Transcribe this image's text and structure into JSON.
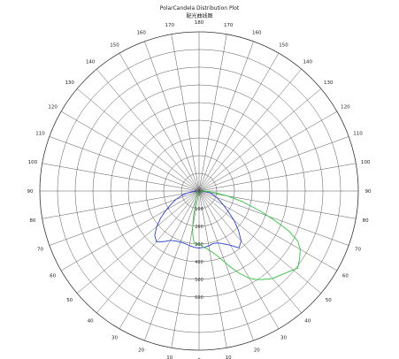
{
  "chart_data": {
    "type": "polar",
    "title": "PolarCandela Distribution Plot",
    "subtitle": "配光曲线图",
    "angular_labels": [
      {
        "angle": 0,
        "label": "0"
      },
      {
        "angle": 10,
        "label": "10"
      },
      {
        "angle": -10,
        "label": "10"
      },
      {
        "angle": 20,
        "label": "20"
      },
      {
        "angle": -20,
        "label": "20"
      },
      {
        "angle": 30,
        "label": "30"
      },
      {
        "angle": -30,
        "label": "30"
      },
      {
        "angle": 40,
        "label": "40"
      },
      {
        "angle": -40,
        "label": "40"
      },
      {
        "angle": 50,
        "label": "50"
      },
      {
        "angle": -50,
        "label": "50"
      },
      {
        "angle": 60,
        "label": "60"
      },
      {
        "angle": -60,
        "label": "60"
      },
      {
        "angle": 70,
        "label": "70"
      },
      {
        "angle": -70,
        "label": "70"
      },
      {
        "angle": 80,
        "label": "80"
      },
      {
        "angle": -80,
        "label": "80"
      },
      {
        "angle": 90,
        "label": "90"
      },
      {
        "angle": -90,
        "label": "90"
      },
      {
        "angle": 100,
        "label": "100"
      },
      {
        "angle": -100,
        "label": "100"
      },
      {
        "angle": 110,
        "label": "110"
      },
      {
        "angle": -110,
        "label": "110"
      },
      {
        "angle": 120,
        "label": "120"
      },
      {
        "angle": -120,
        "label": "120"
      },
      {
        "angle": 130,
        "label": "130"
      },
      {
        "angle": -130,
        "label": "130"
      },
      {
        "angle": 140,
        "label": "140"
      },
      {
        "angle": -140,
        "label": "140"
      },
      {
        "angle": 150,
        "label": "150"
      },
      {
        "angle": -150,
        "label": "150"
      },
      {
        "angle": 160,
        "label": "160"
      },
      {
        "angle": -160,
        "label": "160"
      },
      {
        "angle": 170,
        "label": "170"
      },
      {
        "angle": -170,
        "label": "170"
      },
      {
        "angle": 180,
        "label": "180"
      }
    ],
    "radial_labels": [
      "100",
      "200",
      "300",
      "400",
      "500",
      "600"
    ],
    "r_max": 600,
    "rings": 9,
    "spokes_step": 10,
    "grid": true,
    "series": [
      {
        "color": "#2a3fcf",
        "points": [
          [
            0,
            215
          ],
          [
            5,
            213
          ],
          [
            10,
            210
          ],
          [
            15,
            205
          ],
          [
            20,
            208
          ],
          [
            25,
            220
          ],
          [
            30,
            236
          ],
          [
            35,
            262
          ],
          [
            40,
            247
          ],
          [
            45,
            210
          ],
          [
            50,
            172
          ],
          [
            55,
            133
          ],
          [
            60,
            106
          ],
          [
            65,
            86
          ],
          [
            70,
            70
          ],
          [
            75,
            56
          ],
          [
            80,
            42
          ],
          [
            85,
            25
          ],
          [
            90,
            10
          ],
          [
            -5,
            213
          ],
          [
            -10,
            209
          ],
          [
            -15,
            205
          ],
          [
            -20,
            205
          ],
          [
            -25,
            208
          ],
          [
            -30,
            215
          ],
          [
            -35,
            233
          ],
          [
            -40,
            250
          ],
          [
            -45,
            236
          ],
          [
            -50,
            208
          ],
          [
            -55,
            176
          ],
          [
            -60,
            143
          ],
          [
            -65,
            115
          ],
          [
            -70,
            92
          ],
          [
            -75,
            70
          ],
          [
            -80,
            46
          ],
          [
            -85,
            23
          ],
          [
            -90,
            10
          ]
        ]
      },
      {
        "color": "#2ec43e",
        "points": [
          [
            0,
            198
          ],
          [
            4,
            212
          ],
          [
            8,
            220
          ],
          [
            10,
            228
          ],
          [
            12,
            235
          ],
          [
            15,
            250
          ],
          [
            18,
            270
          ],
          [
            22,
            306
          ],
          [
            26,
            345
          ],
          [
            30,
            380
          ],
          [
            33,
            398
          ],
          [
            36,
            412
          ],
          [
            40,
            431
          ],
          [
            45,
            444
          ],
          [
            48,
            455
          ],
          [
            52,
            472
          ],
          [
            56,
            457
          ],
          [
            60,
            440
          ],
          [
            63,
            418
          ],
          [
            66,
            370
          ],
          [
            69,
            300
          ],
          [
            72,
            240
          ],
          [
            76,
            170
          ],
          [
            80,
            110
          ],
          [
            84,
            62
          ],
          [
            88,
            22
          ],
          [
            90,
            8
          ],
          [
            -3,
            205
          ],
          [
            -6,
            190
          ],
          [
            -8,
            168
          ],
          [
            -10,
            140
          ],
          [
            -12,
            100
          ],
          [
            -15,
            60
          ],
          [
            -20,
            30
          ],
          [
            -30,
            12
          ],
          [
            -45,
            6
          ],
          [
            -90,
            3
          ]
        ]
      }
    ]
  }
}
